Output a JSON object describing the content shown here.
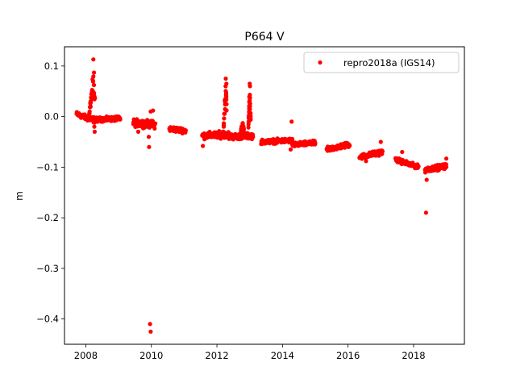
{
  "chart_data": {
    "type": "scatter",
    "title": "P664 V",
    "xlabel": "",
    "ylabel": "m",
    "xlim": [
      2007.35,
      2019.55
    ],
    "ylim": [
      -0.45,
      0.138
    ],
    "x_ticks": [
      2008,
      2010,
      2012,
      2014,
      2016,
      2018
    ],
    "x_tick_labels": [
      "2008",
      "2010",
      "2012",
      "2014",
      "2016",
      "2018"
    ],
    "y_ticks": [
      0.1,
      0.0,
      -0.1,
      -0.2,
      -0.3,
      -0.4
    ],
    "y_tick_labels": [
      "0.1",
      "0.0",
      "−0.1",
      "−0.2",
      "−0.3",
      "−0.4"
    ],
    "grid": false,
    "legend_position": "top-right",
    "marker_color": "#ff0000",
    "series": [
      {
        "name": "repro2018a (IGS14)",
        "clusters": [
          {
            "x_start": 2007.72,
            "x_end": 2008.05,
            "y_start": 0.005,
            "y_end": -0.003,
            "spread": 0.007
          },
          {
            "x_start": 2008.05,
            "x_end": 2008.35,
            "y_start": -0.003,
            "y_end": -0.008,
            "spread": 0.008
          },
          {
            "x_start": 2008.35,
            "x_end": 2009.05,
            "y_start": -0.006,
            "y_end": -0.004,
            "spread": 0.006
          },
          {
            "x_start": 2009.45,
            "x_end": 2010.12,
            "y_start": -0.012,
            "y_end": -0.016,
            "spread": 0.01
          },
          {
            "x_start": 2010.55,
            "x_end": 2011.05,
            "y_start": -0.024,
            "y_end": -0.028,
            "spread": 0.007
          },
          {
            "x_start": 2011.55,
            "x_end": 2012.35,
            "y_start": -0.038,
            "y_end": -0.035,
            "spread": 0.009
          },
          {
            "x_start": 2012.35,
            "x_end": 2013.1,
            "y_start": -0.04,
            "y_end": -0.038,
            "spread": 0.008
          },
          {
            "x_start": 2013.35,
            "x_end": 2014.3,
            "y_start": -0.05,
            "y_end": -0.047,
            "spread": 0.006
          },
          {
            "x_start": 2014.3,
            "x_end": 2015.0,
            "y_start": -0.056,
            "y_end": -0.052,
            "spread": 0.006
          },
          {
            "x_start": 2015.35,
            "x_end": 2016.05,
            "y_start": -0.065,
            "y_end": -0.055,
            "spread": 0.007
          },
          {
            "x_start": 2016.35,
            "x_end": 2017.05,
            "y_start": -0.08,
            "y_end": -0.07,
            "spread": 0.007
          },
          {
            "x_start": 2017.45,
            "x_end": 2018.15,
            "y_start": -0.085,
            "y_end": -0.1,
            "spread": 0.006
          },
          {
            "x_start": 2018.35,
            "x_end": 2019.0,
            "y_start": -0.105,
            "y_end": -0.098,
            "spread": 0.007
          }
        ],
        "spikes": [
          {
            "x_start": 2008.1,
            "x_end": 2008.28,
            "y_base": 0.005,
            "y_peak": 0.088,
            "peak_x": 2008.22
          },
          {
            "x_start": 2012.18,
            "x_end": 2012.3,
            "y_base": -0.03,
            "y_peak": 0.073,
            "peak_x": 2012.27
          },
          {
            "x_start": 2012.72,
            "x_end": 2012.82,
            "y_base": -0.035,
            "y_peak": -0.005,
            "peak_x": 2012.78
          },
          {
            "x_start": 2012.96,
            "x_end": 2013.03,
            "y_base": -0.03,
            "y_peak": 0.065,
            "peak_x": 2013.0
          }
        ],
        "outliers": [
          {
            "x": 2008.23,
            "y": 0.113
          },
          {
            "x": 2008.25,
            "y": 0.087
          },
          {
            "x": 2008.27,
            "y": -0.03
          },
          {
            "x": 2008.26,
            "y": -0.02
          },
          {
            "x": 2009.6,
            "y": -0.03
          },
          {
            "x": 2009.92,
            "y": -0.04
          },
          {
            "x": 2009.93,
            "y": -0.06
          },
          {
            "x": 2009.96,
            "y": -0.41
          },
          {
            "x": 2009.98,
            "y": -0.425
          },
          {
            "x": 2009.98,
            "y": 0.01
          },
          {
            "x": 2010.05,
            "y": 0.012
          },
          {
            "x": 2012.27,
            "y": 0.075
          },
          {
            "x": 2012.29,
            "y": 0.065
          },
          {
            "x": 2013.0,
            "y": 0.065
          },
          {
            "x": 2013.01,
            "y": 0.06
          },
          {
            "x": 2013.0,
            "y": 0.032
          },
          {
            "x": 2014.28,
            "y": -0.01
          },
          {
            "x": 2014.25,
            "y": -0.065
          },
          {
            "x": 2017.0,
            "y": -0.05
          },
          {
            "x": 2017.65,
            "y": -0.07
          },
          {
            "x": 2018.38,
            "y": -0.19
          },
          {
            "x": 2018.4,
            "y": -0.125
          },
          {
            "x": 2019.0,
            "y": -0.083
          },
          {
            "x": 2016.55,
            "y": -0.088
          },
          {
            "x": 2011.57,
            "y": -0.058
          }
        ]
      }
    ]
  }
}
